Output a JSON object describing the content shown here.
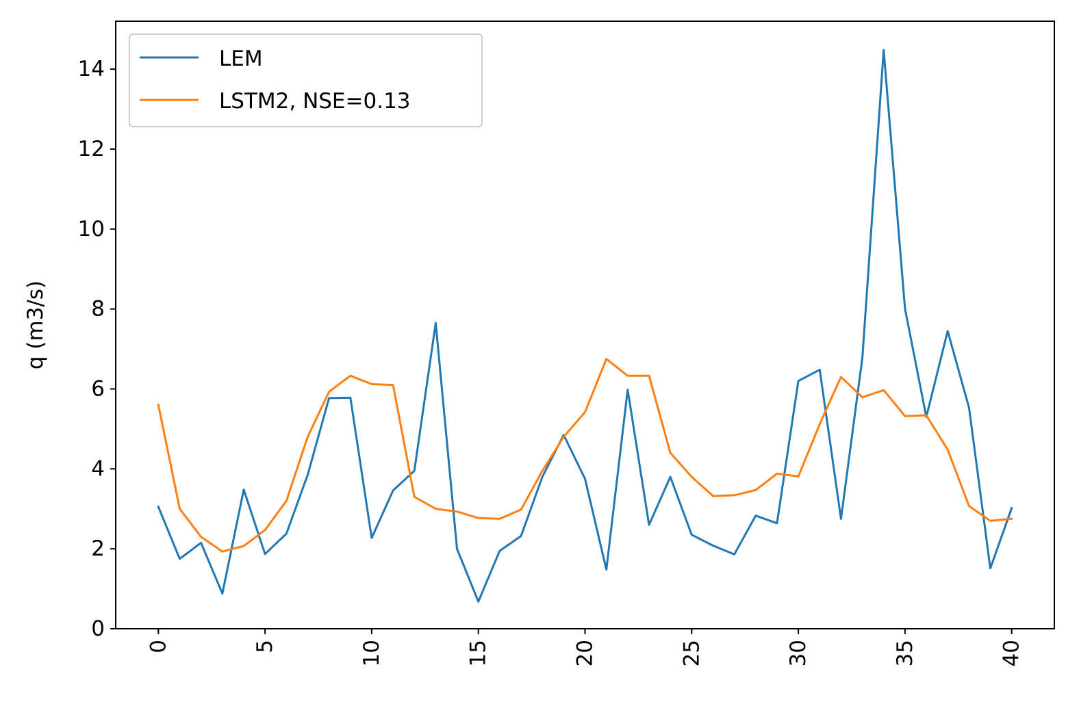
{
  "chart_data": {
    "type": "line",
    "title": "",
    "xlabel": "",
    "ylabel": "q (m3/s)",
    "xlim": [
      -2,
      42
    ],
    "ylim": [
      0,
      15.2
    ],
    "x_ticks": [
      0,
      5,
      10,
      15,
      20,
      25,
      30,
      35,
      40
    ],
    "y_ticks": [
      0,
      2,
      4,
      6,
      8,
      10,
      12,
      14
    ],
    "grid": false,
    "legend_position": "upper-left",
    "x": [
      0,
      1,
      2,
      3,
      4,
      5,
      6,
      7,
      8,
      9,
      10,
      11,
      12,
      13,
      14,
      15,
      16,
      17,
      18,
      19,
      20,
      21,
      22,
      23,
      24,
      25,
      26,
      27,
      28,
      29,
      30,
      31,
      32,
      33,
      34,
      35,
      36,
      37,
      38,
      39,
      40
    ],
    "series": [
      {
        "name": "LEM",
        "color": "#1f77b4",
        "values": [
          3.05,
          1.75,
          2.15,
          0.88,
          3.48,
          1.87,
          2.38,
          3.85,
          5.77,
          5.78,
          2.27,
          3.46,
          3.95,
          7.65,
          2.0,
          0.68,
          1.95,
          2.32,
          3.8,
          4.85,
          3.75,
          1.48,
          5.98,
          2.6,
          3.8,
          2.35,
          2.08,
          1.86,
          2.83,
          2.64,
          6.2,
          6.48,
          2.75,
          6.78,
          14.48,
          8.0,
          5.3,
          7.45,
          5.53,
          1.51,
          3.02
        ]
      },
      {
        "name": "LSTM2, NSE=0.13",
        "color": "#ff7f0e",
        "values": [
          5.6,
          3.0,
          2.3,
          1.93,
          2.07,
          2.47,
          3.2,
          4.8,
          5.93,
          6.33,
          6.12,
          6.1,
          3.3,
          3.0,
          2.93,
          2.77,
          2.75,
          2.98,
          3.95,
          4.8,
          5.42,
          6.75,
          6.33,
          6.33,
          4.4,
          3.8,
          3.32,
          3.34,
          3.47,
          3.88,
          3.81,
          5.12,
          6.3,
          5.79,
          5.97,
          5.32,
          5.34,
          4.48,
          3.07,
          2.7,
          2.75
        ]
      }
    ]
  }
}
